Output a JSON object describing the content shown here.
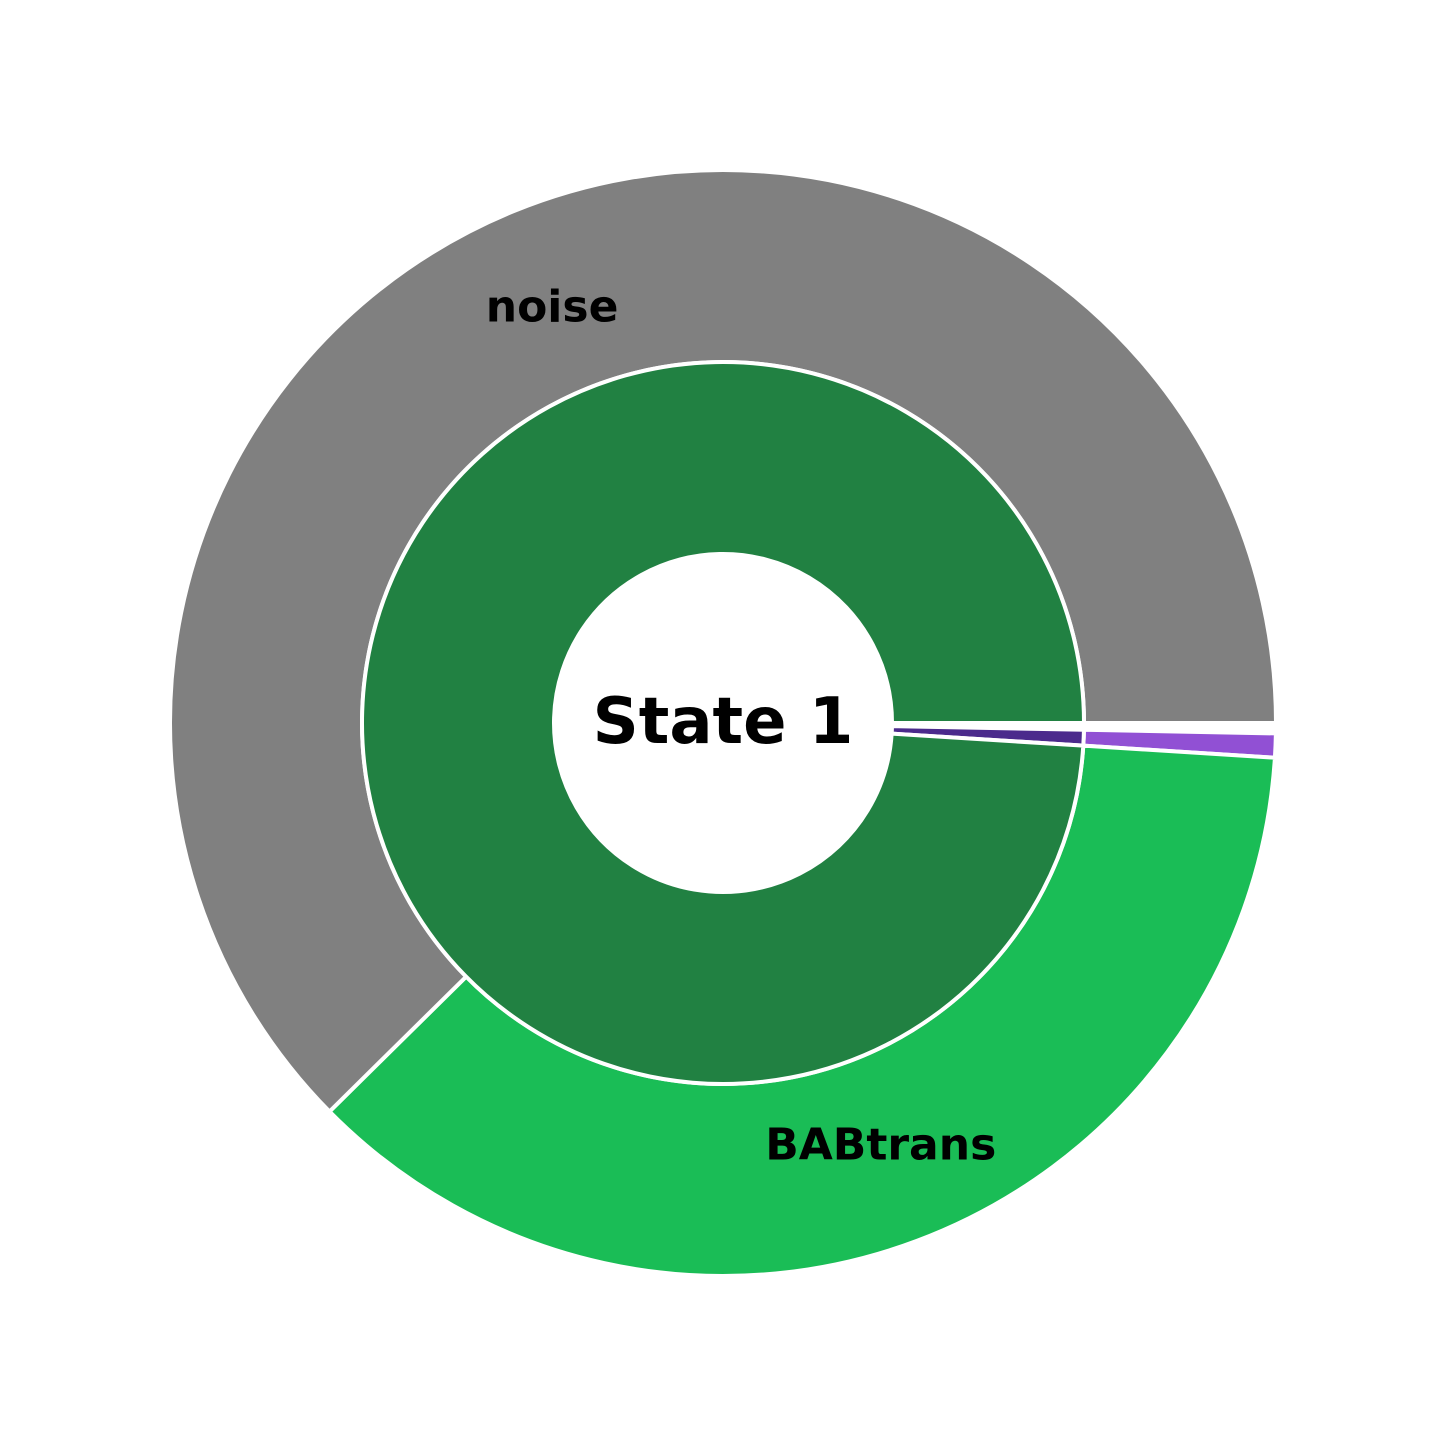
{
  "chart_data": {
    "type": "pie",
    "center_label": "State 1",
    "start_angle_deg": 0,
    "direction": "clockwise-on-screen",
    "inner_ring": [
      {
        "value": 0.3,
        "color": "#ffffff"
      },
      {
        "value": 0.7,
        "color": "#4b2a8c"
      },
      {
        "value": 99.0,
        "color": "#218142"
      }
    ],
    "outer_ring": [
      {
        "value": 0.3,
        "color": "#ffffff"
      },
      {
        "value": 0.7,
        "color": "#9150d4"
      },
      {
        "value": 36.6,
        "color": "#1abd56",
        "label": "BABtrans"
      },
      {
        "value": 62.4,
        "color": "#808080",
        "label": "noise"
      }
    ]
  }
}
